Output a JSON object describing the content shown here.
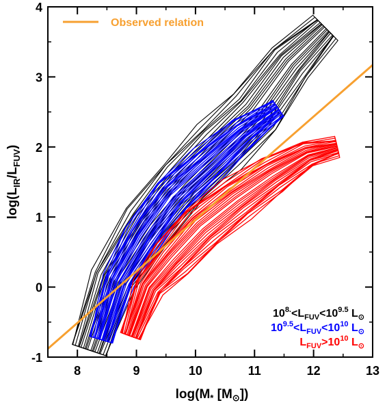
{
  "chart_data": {
    "type": "contour",
    "title": "",
    "xlabel": "log(M",
    "xlabel_star": "*",
    "xlabel_unit_open": " [M",
    "xlabel_unit_sun": "⊙",
    "xlabel_close": "])",
    "ylabel_main": "log(L",
    "ylabel_sub1": "IR",
    "ylabel_slash": "/L",
    "ylabel_sub2": "FUV",
    "ylabel_close": ")",
    "xlim": [
      7.5,
      13
    ],
    "ylim": [
      -1,
      4
    ],
    "xticks": [
      "8",
      "9",
      "10",
      "11",
      "12",
      "13"
    ],
    "yticks": [
      "-1",
      "0",
      "1",
      "2",
      "3",
      "4"
    ],
    "grid": false,
    "observed_relation": {
      "name": "Observed relation",
      "color": "#f7a030",
      "x": [
        7.5,
        13.0
      ],
      "y": [
        -0.88,
        3.17
      ]
    },
    "series": [
      {
        "name": "10^8.<L_FUV<10^9.5 L_sun",
        "label_main": "10",
        "label_sup1": "8.",
        "label_mid": "<L",
        "label_sub": "FUV",
        "label_mid2": "<10",
        "label_sup2": "9.5",
        "label_unit": " L",
        "label_sun": "⊙",
        "color": "#000000",
        "ridge": [
          [
            8.2,
            -0.9
          ],
          [
            8.6,
            0.1
          ],
          [
            9.2,
            0.9
          ],
          [
            9.8,
            1.5
          ],
          [
            10.4,
            2.0
          ],
          [
            11.0,
            2.5
          ],
          [
            11.6,
            3.2
          ],
          [
            12.2,
            3.7
          ]
        ],
        "width": [
          0.55,
          0.65,
          0.75,
          0.8,
          0.85,
          0.8,
          0.7,
          0.45
        ]
      },
      {
        "name": "10^9.5<L_FUV<10^10 L_sun",
        "label_main": "10",
        "label_sup1": "9.5",
        "label_mid": "<L",
        "label_sub": "FUV",
        "label_mid2": "<10",
        "label_sup2": "10",
        "label_unit": " L",
        "label_sun": "⊙",
        "color": "#0000ff",
        "ridge": [
          [
            8.4,
            -0.75
          ],
          [
            8.7,
            0.1
          ],
          [
            9.1,
            0.7
          ],
          [
            9.6,
            1.3
          ],
          [
            10.2,
            1.75
          ],
          [
            10.8,
            2.2
          ],
          [
            11.4,
            2.55
          ]
        ],
        "width": [
          0.35,
          0.45,
          0.55,
          0.6,
          0.55,
          0.45,
          0.3
        ]
      },
      {
        "name": "L_FUV>10^10 L_sun",
        "label_main": "",
        "label_sup1": "",
        "label_mid": "L",
        "label_sub": "FUV",
        "label_mid2": ">10",
        "label_sup2": "10",
        "label_unit": " L",
        "label_sun": "⊙",
        "color": "#ff0000",
        "ridge": [
          [
            8.9,
            -0.7
          ],
          [
            9.2,
            0.0
          ],
          [
            9.6,
            0.4
          ],
          [
            10.1,
            0.85
          ],
          [
            10.7,
            1.25
          ],
          [
            11.3,
            1.6
          ],
          [
            11.9,
            1.9
          ],
          [
            12.4,
            2.0
          ]
        ],
        "width": [
          0.3,
          0.45,
          0.6,
          0.7,
          0.65,
          0.55,
          0.4,
          0.25
        ]
      }
    ]
  }
}
